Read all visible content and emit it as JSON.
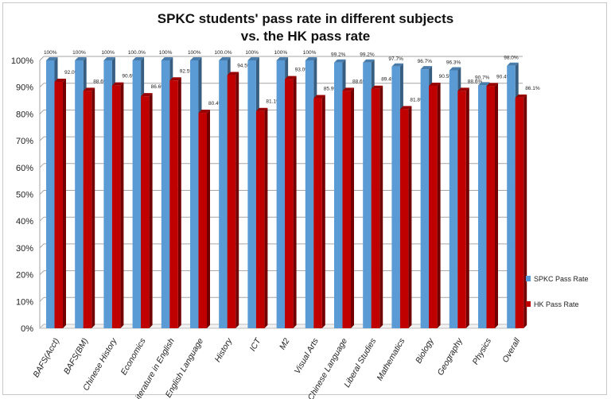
{
  "chart_data": {
    "type": "bar",
    "title_line1": "SPKC students' pass rate in different subjects",
    "title_line2": "vs. the HK pass rate",
    "categories": [
      "BAFS(Acct)",
      "BAFS(BM)",
      "Chinese History",
      "Economics",
      "Literature in English",
      "English Language",
      "History",
      "ICT",
      "M2",
      "Visual Arts",
      "Chinese Language",
      "Liberal Studies",
      "Mathematics",
      "Biology",
      "Geography",
      "Physics",
      "Overall"
    ],
    "series": [
      {
        "name": "SPKC Pass Rate",
        "color": "#5b9bd5",
        "values": [
          100,
          100,
          100,
          100,
          100,
          100,
          100,
          100,
          100,
          100,
          99.2,
          99.2,
          97.7,
          96.7,
          96.3,
          90.7,
          98.0
        ],
        "labels": [
          "100%",
          "100%",
          "100%",
          "100.0%",
          "100%",
          "100%",
          "100.0%",
          "100%",
          "100%",
          "100%",
          "99.2%",
          "99.2%",
          "97.7%",
          "96.7%",
          "96.3%",
          "90.7%",
          "98.0%"
        ]
      },
      {
        "name": "HK Pass Rate",
        "color": "#c00000",
        "values": [
          92.0,
          88.6,
          90.6,
          86.6,
          92.5,
          80.4,
          94.5,
          81.1,
          93.0,
          85.9,
          88.6,
          89.4,
          81.8,
          90.5,
          88.6,
          90.4,
          86.1
        ],
        "labels": [
          "92.0%",
          "88.6%",
          "90.6%",
          "86.6%",
          "92.5%",
          "80.4%",
          "94.5%",
          "81.1%",
          "93.0%",
          "85.9%",
          "88.6%",
          "89.4%",
          "81.8%",
          "90.5%",
          "88.6%",
          "90.4%",
          "86.1%"
        ]
      }
    ],
    "yticks": [
      "0%",
      "10%",
      "20%",
      "30%",
      "40%",
      "50%",
      "60%",
      "70%",
      "80%",
      "90%",
      "100%"
    ],
    "ylim": [
      0,
      100
    ],
    "grid": true,
    "legend": "right"
  }
}
